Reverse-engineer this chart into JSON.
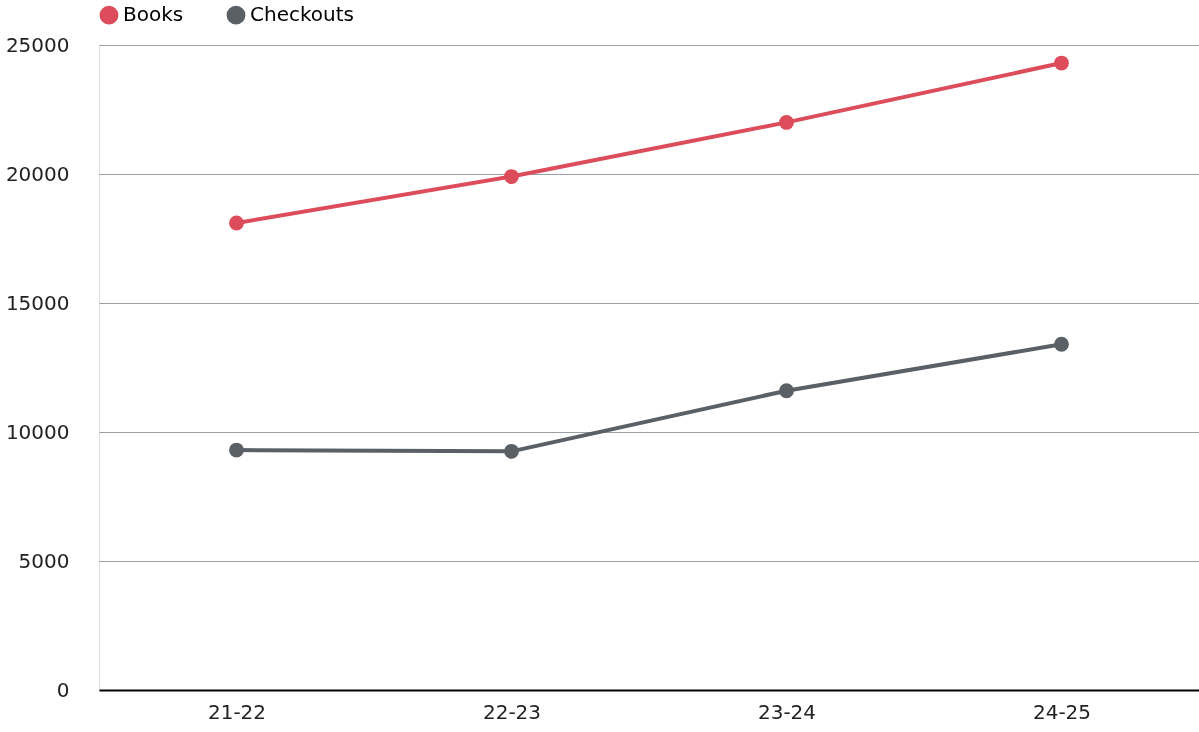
{
  "chart_data": {
    "type": "line",
    "categories": [
      "21-22",
      "22-23",
      "23-24",
      "24-25"
    ],
    "series": [
      {
        "name": "Books",
        "color": "#dc4c5a",
        "values": [
          18100,
          19900,
          22000,
          24300
        ]
      },
      {
        "name": "Checkouts",
        "color": "#5a6066",
        "values": [
          9300,
          9250,
          11600,
          13400
        ]
      }
    ],
    "ylim": [
      0,
      25000
    ],
    "yticks": [
      0,
      5000,
      10000,
      15000,
      20000,
      25000
    ],
    "grid": "y",
    "legend": "top",
    "marker": "circle",
    "line_style": "solid"
  }
}
